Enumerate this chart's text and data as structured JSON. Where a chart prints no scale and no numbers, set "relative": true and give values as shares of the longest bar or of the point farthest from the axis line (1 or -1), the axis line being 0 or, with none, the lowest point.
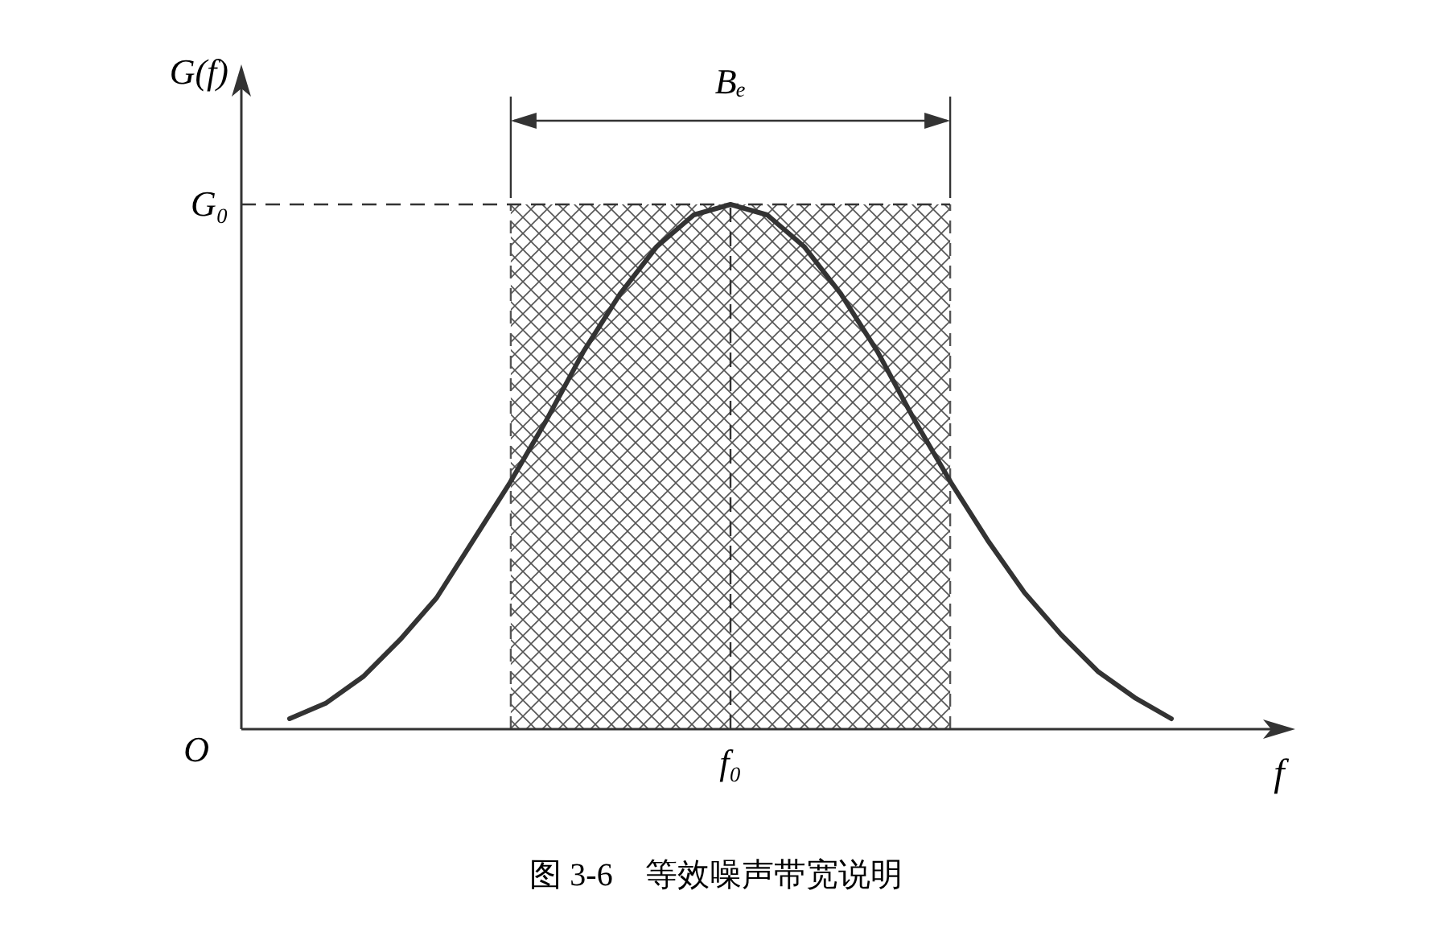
{
  "chart_data": {
    "type": "line",
    "relative": true,
    "xlabel": "f",
    "ylabel": "G(f)",
    "marker": "none",
    "line_style": "solid",
    "categories": [
      null,
      null,
      null,
      null,
      null,
      null,
      null,
      null,
      null,
      null,
      null,
      null,
      null,
      null,
      null,
      null,
      null,
      null,
      null,
      null,
      null,
      null,
      null,
      null,
      null
    ],
    "series": [
      {
        "color": "#333333",
        "values": [
          0.02,
          0.05,
          0.1,
          0.17,
          0.25,
          0.36,
          0.47,
          0.59,
          0.72,
          0.83,
          0.92,
          0.98,
          1,
          0.98,
          0.92,
          0.83,
          0.72,
          0.59,
          0.47,
          0.36,
          0.26,
          0.18,
          0.11,
          0.06,
          0.02
        ]
      }
    ],
    "ref_lines": [
      {
        "axis": "y",
        "value": 1,
        "label": "G₀",
        "line_style": "dashed",
        "color": "#333333"
      }
    ],
    "annotations": [
      "O",
      "Bₑ",
      "f₀",
      "图 3-6    等效噪声带宽说明"
    ]
  }
}
